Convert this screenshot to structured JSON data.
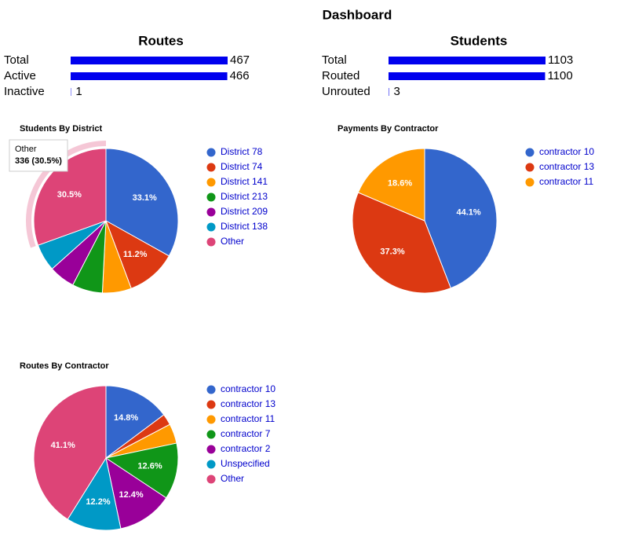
{
  "title": "Dashboard",
  "stats": [
    {
      "title": "Routes",
      "bar_color": "#0000ee",
      "rows": [
        {
          "label": "Total",
          "value": 467
        },
        {
          "label": "Active",
          "value": 466
        },
        {
          "label": "Inactive",
          "value": 1
        }
      ]
    },
    {
      "title": "Students",
      "bar_color": "#0000ee",
      "rows": [
        {
          "label": "Total",
          "value": 1103
        },
        {
          "label": "Routed",
          "value": 1100
        },
        {
          "label": "Unrouted",
          "value": 3
        }
      ]
    }
  ],
  "chart_data": [
    {
      "type": "pie",
      "title": "Students By District",
      "categories": [
        "District 78",
        "District 74",
        "District 141",
        "District 213",
        "District 209",
        "District 138",
        "Other"
      ],
      "values": [
        33.1,
        11.2,
        6.5,
        6.8,
        5.8,
        6.1,
        30.5
      ],
      "value_labels": [
        "33.1%",
        "11.2%",
        null,
        null,
        null,
        null,
        "30.5%"
      ],
      "colors": [
        "#3366cc",
        "#dc3912",
        "#ff9900",
        "#109618",
        "#990099",
        "#0099c6",
        "#dd4477"
      ],
      "tooltip": {
        "title": "Other",
        "text": "336 (30.5%)"
      }
    },
    {
      "type": "pie",
      "title": "Payments By Contractor",
      "categories": [
        "contractor 10",
        "contractor 13",
        "contractor 11"
      ],
      "values": [
        44.1,
        37.3,
        18.6
      ],
      "value_labels": [
        "44.1%",
        "37.3%",
        "18.6%"
      ],
      "colors": [
        "#3366cc",
        "#dc3912",
        "#ff9900"
      ]
    },
    {
      "type": "pie",
      "title": "Routes By Contractor",
      "categories": [
        "contractor 10",
        "contractor 13",
        "contractor 11",
        "contractor 7",
        "contractor 2",
        "Unspecified",
        "Other"
      ],
      "values": [
        14.8,
        2.5,
        4.4,
        12.6,
        12.4,
        12.2,
        41.1
      ],
      "value_labels": [
        "14.8%",
        null,
        null,
        "12.6%",
        "12.4%",
        "12.2%",
        "41.1%"
      ],
      "colors": [
        "#3366cc",
        "#dc3912",
        "#ff9900",
        "#109618",
        "#990099",
        "#0099c6",
        "#dd4477"
      ]
    }
  ]
}
